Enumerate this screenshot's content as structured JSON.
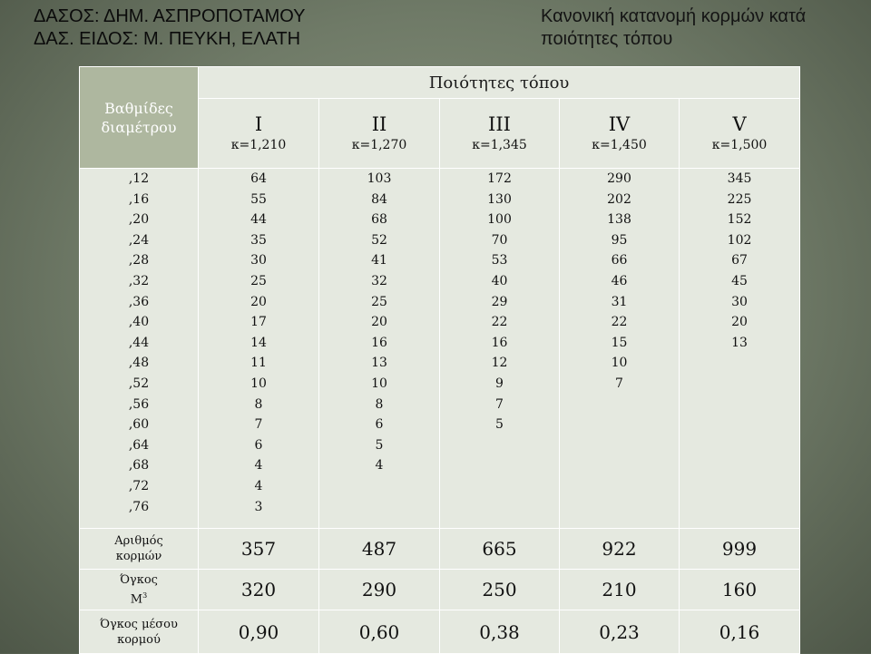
{
  "header": {
    "left_line1": "ΔΑΣΟΣ: ΔΗΜ. ΑΣΠΡΟΠΟΤΑΜΟΥ",
    "left_line2": "ΔΑΣ. ΕΙΔΟΣ: Μ. ΠΕΥΚΗ, ΕΛΑΤΗ",
    "right_line1": "Κανονική κατανομή κορμών κατά",
    "right_line2": "ποιότητες τόπου"
  },
  "table": {
    "group_label_line1": "Βαθμίδες",
    "group_label_line2": "διαμέτρου",
    "quality_title": "Ποιότητες τόπου",
    "columns": [
      {
        "roman": "I",
        "k": "κ=1,210"
      },
      {
        "roman": "II",
        "k": "κ=1,270"
      },
      {
        "roman": "III",
        "k": "κ=1,345"
      },
      {
        "roman": "IV",
        "k": "κ=1,450"
      },
      {
        "roman": "V",
        "k": "κ=1,500"
      }
    ],
    "diameters": [
      ",12",
      ",16",
      ",20",
      ",24",
      ",28",
      ",32",
      ",36",
      ",40",
      ",44",
      ",48",
      ",52",
      ",56",
      ",60",
      ",64",
      ",68",
      ",72",
      ",76"
    ],
    "values": [
      [
        "64",
        "55",
        "44",
        "35",
        "30",
        "25",
        "20",
        "17",
        "14",
        "11",
        "10",
        "8",
        "7",
        "6",
        "4",
        "4",
        "3"
      ],
      [
        "103",
        "84",
        "68",
        "52",
        "41",
        "32",
        "25",
        "20",
        "16",
        "13",
        "10",
        "8",
        "6",
        "5",
        "4"
      ],
      [
        "172",
        "130",
        "100",
        "70",
        "53",
        "40",
        "29",
        "22",
        "16",
        "12",
        "9",
        "7",
        "5"
      ],
      [
        "290",
        "202",
        "138",
        "95",
        "66",
        "46",
        "31",
        "22",
        "15",
        "10",
        "7"
      ],
      [
        "345",
        "225",
        "152",
        "102",
        "67",
        "45",
        "30",
        "20",
        "13"
      ]
    ],
    "summary_rows": [
      {
        "label_line1": "Αριθμός",
        "label_line2": "κορμών",
        "label_sup": "",
        "values": [
          "357",
          "487",
          "665",
          "922",
          "999"
        ]
      },
      {
        "label_line1": "Όγκος",
        "label_line2": "Μ",
        "label_sup": "3",
        "values": [
          "320",
          "290",
          "250",
          "210",
          "160"
        ]
      },
      {
        "label_line1": "Όγκος μέσου",
        "label_line2": "κορμού",
        "label_sup": "",
        "values": [
          "0,90",
          "0,60",
          "0,38",
          "0,23",
          "0,16"
        ]
      }
    ]
  }
}
